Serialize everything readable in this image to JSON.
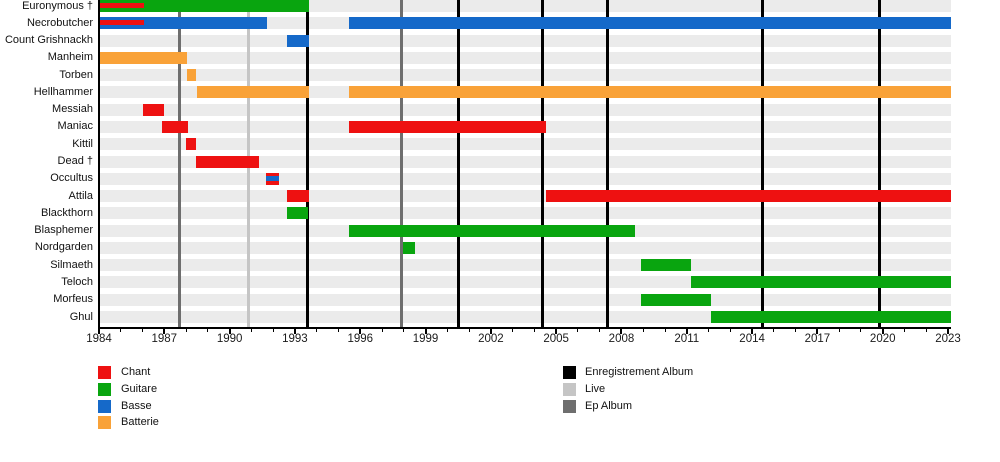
{
  "chart_data": {
    "type": "timeline",
    "x_axis": {
      "min": 1984,
      "max": 2023,
      "major_step": 3
    },
    "tick_labels": [
      "1984",
      "1987",
      "1990",
      "1993",
      "1996",
      "1999",
      "2002",
      "2005",
      "2008",
      "2011",
      "2014",
      "2017",
      "2020",
      "2023"
    ],
    "row_band_color": "#ebebeb",
    "members": [
      {
        "name": "Euronymous †",
        "bars": [
          {
            "role": "Guitare",
            "start": 1984,
            "end": 1993.65
          }
        ],
        "overlays": [
          {
            "role": "Chant",
            "start": 1984,
            "end": 1986.05
          }
        ]
      },
      {
        "name": "Necrobutcher",
        "bars": [
          {
            "role": "Basse",
            "start": 1984,
            "end": 1991.7
          },
          {
            "role": "Basse",
            "start": 1995.5,
            "end": 2023.15
          }
        ],
        "overlays": [
          {
            "role": "Chant",
            "start": 1984,
            "end": 1986.05
          }
        ]
      },
      {
        "name": "Count Grishnackh",
        "bars": [
          {
            "role": "Basse",
            "start": 1992.65,
            "end": 1993.65
          }
        ]
      },
      {
        "name": "Manheim",
        "bars": [
          {
            "role": "Batterie",
            "start": 1984,
            "end": 1988.05
          }
        ]
      },
      {
        "name": "Torben",
        "bars": [
          {
            "role": "Batterie",
            "start": 1988.05,
            "end": 1988.45
          }
        ]
      },
      {
        "name": "Hellhammer",
        "bars": [
          {
            "role": "Batterie",
            "start": 1988.5,
            "end": 1993.65
          },
          {
            "role": "Batterie",
            "start": 1995.5,
            "end": 2023.15
          }
        ]
      },
      {
        "name": "Messiah",
        "bars": [
          {
            "role": "Chant",
            "start": 1986.0,
            "end": 1987.0
          }
        ]
      },
      {
        "name": "Maniac",
        "bars": [
          {
            "role": "Chant",
            "start": 1986.9,
            "end": 1988.1
          },
          {
            "role": "Chant",
            "start": 1995.5,
            "end": 2004.55
          }
        ]
      },
      {
        "name": "Kittil",
        "bars": [
          {
            "role": "Chant",
            "start": 1988.0,
            "end": 1988.45
          }
        ]
      },
      {
        "name": "Dead †",
        "bars": [
          {
            "role": "Chant",
            "start": 1988.45,
            "end": 1991.35
          }
        ]
      },
      {
        "name": "Occultus",
        "bars": [
          {
            "role": "Chant",
            "start": 1991.65,
            "end": 1992.25
          }
        ],
        "overlays": [
          {
            "role": "Basse",
            "start": 1991.65,
            "end": 1992.25
          }
        ]
      },
      {
        "name": "Attila",
        "bars": [
          {
            "role": "Chant",
            "start": 1992.65,
            "end": 1993.65
          },
          {
            "role": "Chant",
            "start": 2004.55,
            "end": 2023.15
          }
        ]
      },
      {
        "name": "Blackthorn",
        "bars": [
          {
            "role": "Guitare",
            "start": 1992.65,
            "end": 1993.6
          }
        ]
      },
      {
        "name": "Blasphemer",
        "bars": [
          {
            "role": "Guitare",
            "start": 1995.5,
            "end": 2008.6
          }
        ]
      },
      {
        "name": "Nordgarden",
        "bars": [
          {
            "role": "Guitare",
            "start": 1997.95,
            "end": 1998.5
          }
        ]
      },
      {
        "name": "Silmaeth",
        "bars": [
          {
            "role": "Guitare",
            "start": 2008.9,
            "end": 2011.2
          }
        ]
      },
      {
        "name": "Teloch",
        "bars": [
          {
            "role": "Guitare",
            "start": 2011.2,
            "end": 2023.15
          }
        ]
      },
      {
        "name": "Morfeus",
        "bars": [
          {
            "role": "Guitare",
            "start": 2008.9,
            "end": 2012.1
          }
        ]
      },
      {
        "name": "Ghul",
        "bars": [
          {
            "role": "Guitare",
            "start": 2012.1,
            "end": 2023.15
          }
        ]
      }
    ],
    "events": [
      {
        "type": "Ep Album",
        "year": 1987.7
      },
      {
        "type": "Live",
        "year": 1990.85
      },
      {
        "type": "Enregistrement Album",
        "year": 1993.6
      },
      {
        "type": "Ep Album",
        "year": 1997.9
      },
      {
        "type": "Enregistrement Album",
        "year": 2000.5
      },
      {
        "type": "Enregistrement Album",
        "year": 2004.35
      },
      {
        "type": "Enregistrement Album",
        "year": 2007.35
      },
      {
        "type": "Enregistrement Album",
        "year": 2014.5
      },
      {
        "type": "Enregistrement Album",
        "year": 2019.85
      }
    ],
    "legend_roles": [
      {
        "label": "Chant",
        "color": "#ee1111"
      },
      {
        "label": "Guitare",
        "color": "#09a50f"
      },
      {
        "label": "Basse",
        "color": "#1569c9"
      },
      {
        "label": "Batterie",
        "color": "#f9a238"
      }
    ],
    "legend_events": [
      {
        "label": "Enregistrement Album",
        "color": "#000000"
      },
      {
        "label": "Live",
        "color": "#c5c5c5"
      },
      {
        "label": "Ep Album",
        "color": "#6e6e6e"
      }
    ]
  }
}
